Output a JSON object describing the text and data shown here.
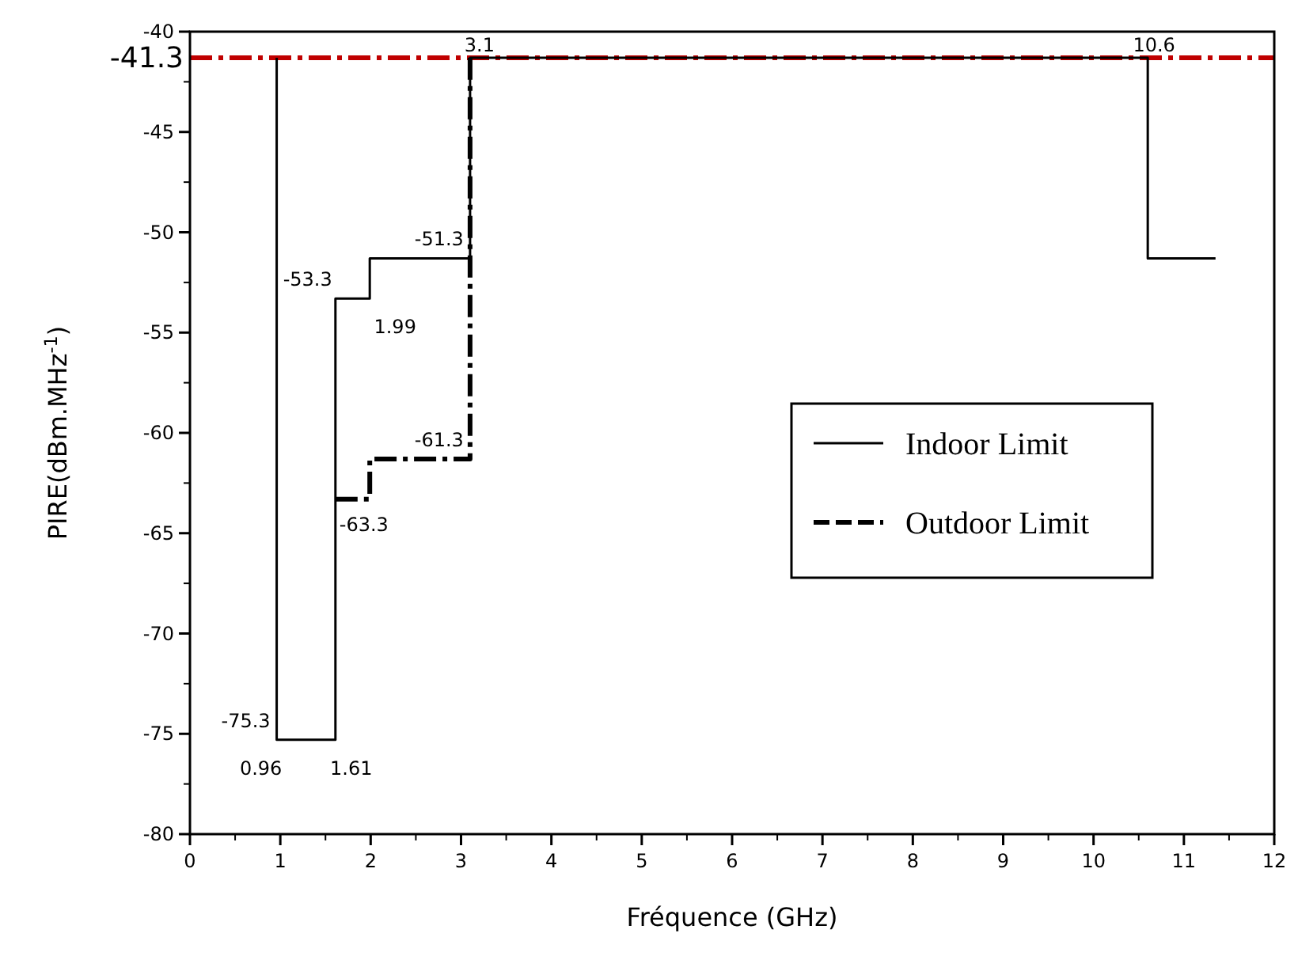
{
  "chart_data": {
    "type": "line",
    "xlabel": "Fréquence (GHz)",
    "ylabel": "PIRE(dBm.MHz$^{-1}$)",
    "xlim": [
      0,
      12
    ],
    "xticks": [
      0,
      1,
      2,
      3,
      4,
      5,
      6,
      7,
      8,
      9,
      10,
      11,
      12
    ],
    "ylim": [
      -80,
      -40
    ],
    "yticks": [
      -80,
      -75,
      -70,
      -65,
      -60,
      -55,
      -50,
      -45,
      -40
    ],
    "series": [
      {
        "name": "Indoor Limit",
        "color": "#000000",
        "line_style": "solid",
        "x": [
          0.96,
          0.96,
          1.61,
          1.61,
          1.99,
          1.99,
          3.1,
          3.1,
          10.6,
          10.6,
          11.35
        ],
        "values": [
          -41.3,
          -75.3,
          -75.3,
          -53.3,
          -53.3,
          -51.3,
          -51.3,
          -41.3,
          -41.3,
          -51.3,
          -51.3
        ]
      },
      {
        "name": "Outdoor Limit",
        "color": "#000000",
        "line_style": "dashed",
        "x": [
          1.61,
          1.99,
          1.99,
          3.1,
          3.1
        ],
        "values": [
          -63.3,
          -63.3,
          -61.3,
          -61.3,
          -41.3
        ]
      }
    ],
    "ref_lines": [
      {
        "axis": "y",
        "value": -41.3,
        "label": "-41.3",
        "color": "#c00000",
        "line_style": "dashed"
      }
    ],
    "annotations": [
      {
        "text": "-75.3",
        "x": 0.96,
        "y": -75.3
      },
      {
        "text": "0.96",
        "x": 0.96,
        "y": -75.3
      },
      {
        "text": "1.61",
        "x": 1.61,
        "y": -75.3
      },
      {
        "text": "-53.3",
        "x": 1.61,
        "y": -53.3
      },
      {
        "text": "1.99",
        "x": 1.99,
        "y": -53.3
      },
      {
        "text": "-51.3",
        "x": 3.1,
        "y": -51.3
      },
      {
        "text": "-61.3",
        "x": 3.1,
        "y": -61.3
      },
      {
        "text": "-63.3",
        "x": 1.61,
        "y": -63.3
      },
      {
        "text": "3.1",
        "x": 3.1,
        "y": -41.3
      },
      {
        "text": "10.6",
        "x": 10.6,
        "y": -41.3
      }
    ],
    "legend": "right",
    "marker": "none"
  }
}
